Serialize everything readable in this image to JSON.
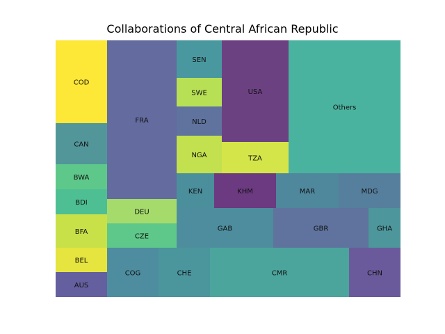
{
  "chart_data": {
    "type": "treemap",
    "title": "Collaborations of Central African Republic",
    "colors": {
      "COD": "#fde737",
      "CAN": "#52969a",
      "BWA": "#5ec88a",
      "BDI": "#4dbf93",
      "BFA": "#c9e149",
      "BEL": "#e6e43e",
      "AUS": "#645f9e",
      "FRA": "#636b9f",
      "DEU": "#a5db6b",
      "CZE": "#5ec88a",
      "COG": "#4e8da0",
      "CHE": "#4b959d",
      "SEN": "#4a989f",
      "SWE": "#b8e055",
      "NLD": "#5f739e",
      "NGA": "#c3e04e",
      "USA": "#6c4182",
      "TZA": "#d4e54a",
      "Others": "#4ab39f",
      "KEN": "#4b8f9c",
      "KHM": "#6b3a80",
      "MAR": "#4f879c",
      "MDG": "#567f9d",
      "GAB": "#4e8d9d",
      "GBR": "#5f739e",
      "GHA": "#4d969c",
      "CMR": "#4ba59c",
      "CHN": "#6b5a9b"
    },
    "cells": [
      {
        "label": "COD"
      },
      {
        "label": "CAN"
      },
      {
        "label": "BWA"
      },
      {
        "label": "BDI"
      },
      {
        "label": "BFA"
      },
      {
        "label": "BEL"
      },
      {
        "label": "AUS"
      },
      {
        "label": "FRA"
      },
      {
        "label": "DEU"
      },
      {
        "label": "CZE"
      },
      {
        "label": "COG"
      },
      {
        "label": "CHE"
      },
      {
        "label": "SEN"
      },
      {
        "label": "SWE"
      },
      {
        "label": "NLD"
      },
      {
        "label": "NGA"
      },
      {
        "label": "USA"
      },
      {
        "label": "TZA"
      },
      {
        "label": "Others"
      },
      {
        "label": "KEN"
      },
      {
        "label": "KHM"
      },
      {
        "label": "MAR"
      },
      {
        "label": "MDG"
      },
      {
        "label": "GAB"
      },
      {
        "label": "GBR"
      },
      {
        "label": "GHA"
      },
      {
        "label": "CMR"
      },
      {
        "label": "CHN"
      }
    ]
  }
}
